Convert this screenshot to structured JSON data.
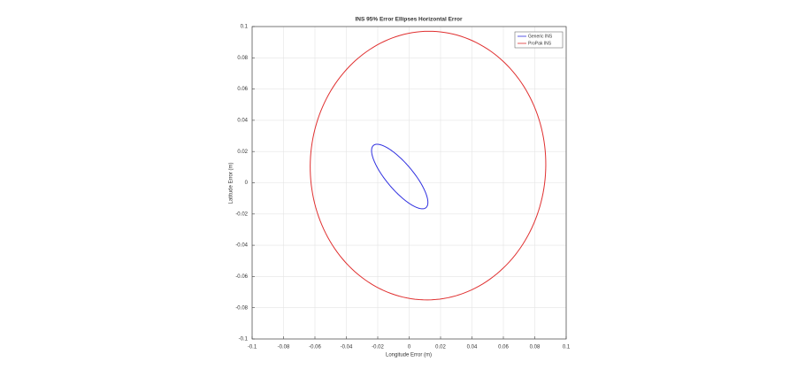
{
  "chart_data": {
    "type": "ellipse",
    "title": "INS 95% Error Ellipses Horizontal Error",
    "x_label": "Longitude Error (m)",
    "y_label": "Latitude Error (m)",
    "xlim": [
      -0.1,
      0.1
    ],
    "ylim": [
      -0.1,
      0.1
    ],
    "xticks": [
      -0.1,
      -0.08,
      -0.06,
      -0.04,
      -0.02,
      0,
      0.02,
      0.04,
      0.06,
      0.08,
      0.1
    ],
    "yticks": [
      -0.1,
      -0.08,
      -0.06,
      -0.04,
      -0.02,
      0,
      0.02,
      0.04,
      0.06,
      0.08,
      0.1
    ],
    "grid": true,
    "legend": "top-right",
    "series": [
      {
        "name": "Generic INS",
        "color": "#3030e0",
        "center": [
          -0.006,
          0.004
        ],
        "semi_axes": [
          0.026,
          0.0085
        ],
        "angle": -50
      },
      {
        "name": "ProPak INS",
        "color": "#e03030",
        "center": [
          0.012,
          0.011
        ],
        "semi_axes": [
          0.075,
          0.086
        ],
        "angle": -2
      }
    ]
  }
}
